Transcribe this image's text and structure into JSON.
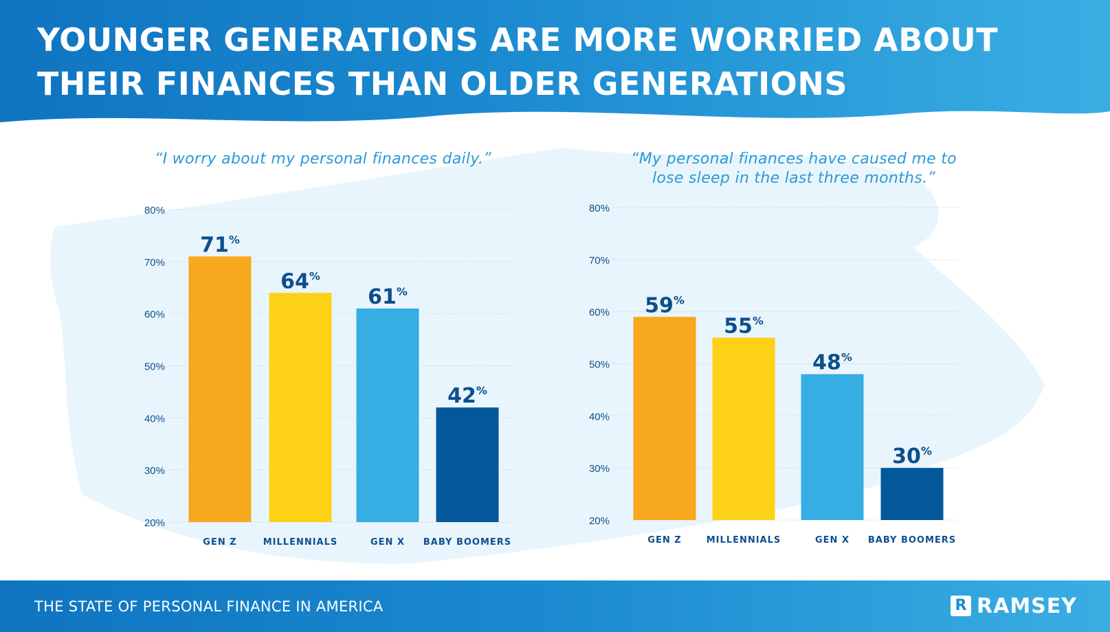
{
  "header": {
    "title": "YOUNGER GENERATIONS ARE MORE WORRIED ABOUT THEIR FINANCES THAN OLDER GENERATIONS"
  },
  "footer": {
    "text": "THE STATE OF PERSONAL FINANCE IN AMERICA",
    "logo_mark": "R",
    "logo_text": "RAMSEY"
  },
  "colors": {
    "gen_z": "#f8a81d",
    "millennials": "#fdd116",
    "gen_x": "#36ade3",
    "baby_boomers": "#02589a",
    "label_text": "#0d4f8c",
    "title_text": "#2a9ad6"
  },
  "chart_data": [
    {
      "type": "bar",
      "title": "“I worry about my personal finances daily.”",
      "categories": [
        "GEN Z",
        "MILLENNIALS",
        "GEN X",
        "BABY BOOMERS"
      ],
      "values": [
        71,
        64,
        61,
        42
      ],
      "value_suffix": "%",
      "ylim": [
        20,
        80
      ],
      "yticks": [
        20,
        30,
        40,
        50,
        60,
        70,
        80
      ],
      "ytick_labels": [
        "20%",
        "30%",
        "40%",
        "50%",
        "60%",
        "70%",
        "80%"
      ],
      "grid": true,
      "xlabel": "",
      "ylabel": ""
    },
    {
      "type": "bar",
      "title": "“My personal finances have caused me to lose sleep in the last three months.”",
      "categories": [
        "GEN Z",
        "MILLENNIALS",
        "GEN X",
        "BABY BOOMERS"
      ],
      "values": [
        59,
        55,
        48,
        30
      ],
      "value_suffix": "%",
      "ylim": [
        20,
        80
      ],
      "yticks": [
        20,
        30,
        40,
        50,
        60,
        70,
        80
      ],
      "ytick_labels": [
        "20%",
        "30%",
        "40%",
        "50%",
        "60%",
        "70%",
        "80%"
      ],
      "grid": true,
      "xlabel": "",
      "ylabel": ""
    }
  ]
}
